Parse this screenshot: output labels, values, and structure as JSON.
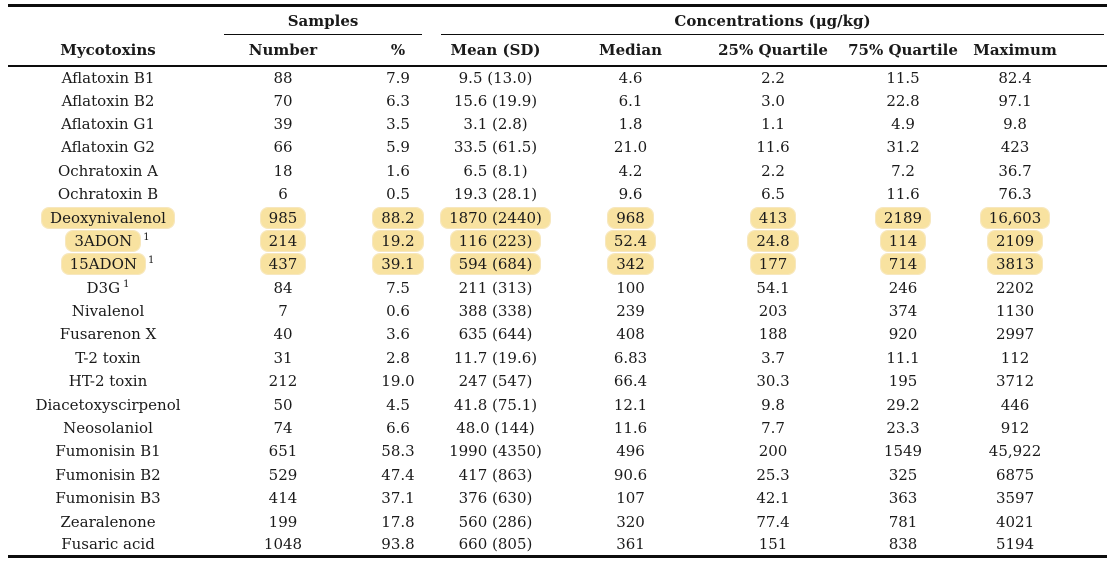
{
  "colors": {
    "highlight": "#F8E2A0",
    "highlight_edge": "#F0D488",
    "text": "#1A1A1A",
    "rule": "#0D0D0D",
    "background": "#FFFFFF"
  },
  "table": {
    "group_headers": {
      "samples": "Samples",
      "concentrations": "Concentrations (μg/kg)"
    },
    "column_headers": [
      "Mycotoxins",
      "Number",
      "%",
      "Mean (SD)",
      "Median",
      "25% Quartile",
      "75% Quartile",
      "Maximum"
    ],
    "rows": [
      {
        "toxin": "Aflatoxin B1",
        "sup": "",
        "highlight": false,
        "values": [
          "88",
          "7.9",
          "9.5 (13.0)",
          "4.6",
          "2.2",
          "11.5",
          "82.4"
        ]
      },
      {
        "toxin": "Aflatoxin B2",
        "sup": "",
        "highlight": false,
        "values": [
          "70",
          "6.3",
          "15.6 (19.9)",
          "6.1",
          "3.0",
          "22.8",
          "97.1"
        ]
      },
      {
        "toxin": "Aflatoxin G1",
        "sup": "",
        "highlight": false,
        "values": [
          "39",
          "3.5",
          "3.1 (2.8)",
          "1.8",
          "1.1",
          "4.9",
          "9.8"
        ]
      },
      {
        "toxin": "Aflatoxin G2",
        "sup": "",
        "highlight": false,
        "values": [
          "66",
          "5.9",
          "33.5 (61.5)",
          "21.0",
          "11.6",
          "31.2",
          "423"
        ]
      },
      {
        "toxin": "Ochratoxin A",
        "sup": "",
        "highlight": false,
        "values": [
          "18",
          "1.6",
          "6.5 (8.1)",
          "4.2",
          "2.2",
          "7.2",
          "36.7"
        ]
      },
      {
        "toxin": "Ochratoxin B",
        "sup": "",
        "highlight": false,
        "values": [
          "6",
          "0.5",
          "19.3 (28.1)",
          "9.6",
          "6.5",
          "11.6",
          "76.3"
        ]
      },
      {
        "toxin": "Deoxynivalenol",
        "sup": "",
        "highlight": true,
        "values": [
          "985",
          "88.2",
          "1870 (2440)",
          "968",
          "413",
          "2189",
          "16,603"
        ]
      },
      {
        "toxin": "3ADON",
        "sup": "1",
        "highlight": true,
        "values": [
          "214",
          "19.2",
          "116 (223)",
          "52.4",
          "24.8",
          "114",
          "2109"
        ]
      },
      {
        "toxin": "15ADON",
        "sup": "1",
        "highlight": true,
        "values": [
          "437",
          "39.1",
          "594 (684)",
          "342",
          "177",
          "714",
          "3813"
        ]
      },
      {
        "toxin": "D3G",
        "sup": "1",
        "highlight": false,
        "values": [
          "84",
          "7.5",
          "211 (313)",
          "100",
          "54.1",
          "246",
          "2202"
        ]
      },
      {
        "toxin": "Nivalenol",
        "sup": "",
        "highlight": false,
        "values": [
          "7",
          "0.6",
          "388 (338)",
          "239",
          "203",
          "374",
          "1130"
        ]
      },
      {
        "toxin": "Fusarenon X",
        "sup": "",
        "highlight": false,
        "values": [
          "40",
          "3.6",
          "635 (644)",
          "408",
          "188",
          "920",
          "2997"
        ]
      },
      {
        "toxin": "T-2 toxin",
        "sup": "",
        "highlight": false,
        "values": [
          "31",
          "2.8",
          "11.7 (19.6)",
          "6.83",
          "3.7",
          "11.1",
          "112"
        ]
      },
      {
        "toxin": "HT-2 toxin",
        "sup": "",
        "highlight": false,
        "values": [
          "212",
          "19.0",
          "247 (547)",
          "66.4",
          "30.3",
          "195",
          "3712"
        ]
      },
      {
        "toxin": "Diacetoxyscirpenol",
        "sup": "",
        "highlight": false,
        "values": [
          "50",
          "4.5",
          "41.8 (75.1)",
          "12.1",
          "9.8",
          "29.2",
          "446"
        ]
      },
      {
        "toxin": "Neosolaniol",
        "sup": "",
        "highlight": false,
        "values": [
          "74",
          "6.6",
          "48.0 (144)",
          "11.6",
          "7.7",
          "23.3",
          "912"
        ]
      },
      {
        "toxin": "Fumonisin B1",
        "sup": "",
        "highlight": false,
        "values": [
          "651",
          "58.3",
          "1990 (4350)",
          "496",
          "200",
          "1549",
          "45,922"
        ]
      },
      {
        "toxin": "Fumonisin B2",
        "sup": "",
        "highlight": false,
        "values": [
          "529",
          "47.4",
          "417 (863)",
          "90.6",
          "25.3",
          "325",
          "6875"
        ]
      },
      {
        "toxin": "Fumonisin B3",
        "sup": "",
        "highlight": false,
        "values": [
          "414",
          "37.1",
          "376 (630)",
          "107",
          "42.1",
          "363",
          "3597"
        ]
      },
      {
        "toxin": "Zearalenone",
        "sup": "",
        "highlight": false,
        "values": [
          "199",
          "17.8",
          "560 (286)",
          "320",
          "77.4",
          "781",
          "4021"
        ]
      },
      {
        "toxin": "Fusaric acid",
        "sup": "",
        "highlight": false,
        "values": [
          "1048",
          "93.8",
          "660 (805)",
          "361",
          "151",
          "838",
          "5194"
        ]
      }
    ]
  }
}
